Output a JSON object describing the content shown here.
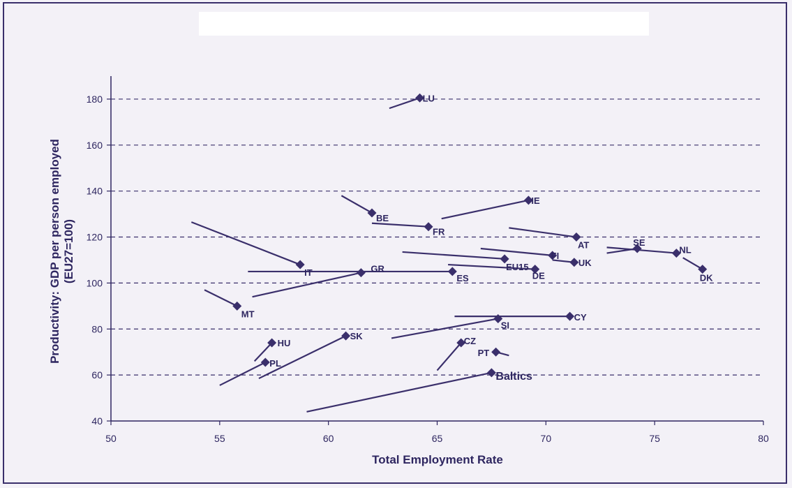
{
  "chart_data": {
    "type": "scatter",
    "xlabel": "Total Employment Rate",
    "ylabel": "Productivity: GDP per person employed (EU27=100)",
    "xlim": [
      50,
      80
    ],
    "ylim": [
      40,
      190
    ],
    "xticks": [
      "50",
      "55",
      "60",
      "65",
      "70",
      "75",
      "80"
    ],
    "yticks": [
      "40",
      "60",
      "80",
      "100",
      "120",
      "140",
      "160",
      "180"
    ],
    "grid": "horizontal dashed",
    "colors": {
      "marker": "#3a2f6b",
      "axis": "#2e2660",
      "grid": "#3a2f6b"
    },
    "points": [
      {
        "label": "LU",
        "x": 64.2,
        "y": 180.5,
        "trail": {
          "x": 62.8,
          "y": 176
        }
      },
      {
        "label": "BE",
        "x": 62.0,
        "y": 130.5,
        "trail": {
          "x": 60.6,
          "y": 138
        }
      },
      {
        "label": "FR",
        "x": 64.6,
        "y": 124.5,
        "trail": {
          "x": 62.0,
          "y": 126
        }
      },
      {
        "label": "IE",
        "x": 69.2,
        "y": 136.0,
        "trail": {
          "x": 65.2,
          "y": 128
        }
      },
      {
        "label": "AT",
        "x": 71.4,
        "y": 120.0,
        "trail": {
          "x": 68.3,
          "y": 124
        }
      },
      {
        "label": "SE",
        "x": 74.2,
        "y": 115.0,
        "trail": {
          "x": 72.8,
          "y": 113
        }
      },
      {
        "label": "NL",
        "x": 76.0,
        "y": 113.0,
        "trail": {
          "x": 72.8,
          "y": 115.5
        }
      },
      {
        "label": "DK",
        "x": 77.2,
        "y": 106.0,
        "trail": {
          "x": 76.3,
          "y": 111
        }
      },
      {
        "label": "FI",
        "x": 70.3,
        "y": 112.0,
        "trail": {
          "x": 67.0,
          "y": 115
        }
      },
      {
        "label": "UK",
        "x": 71.3,
        "y": 109.0,
        "trail": {
          "x": 70.3,
          "y": 110
        }
      },
      {
        "label": "EU15",
        "x": 68.1,
        "y": 110.5,
        "trail": {
          "x": 63.4,
          "y": 113.5
        }
      },
      {
        "label": "DE",
        "x": 69.5,
        "y": 106.0,
        "trail": {
          "x": 65.5,
          "y": 108
        }
      },
      {
        "label": "IT",
        "x": 58.7,
        "y": 108.0,
        "trail": {
          "x": 53.7,
          "y": 126.5
        }
      },
      {
        "label": "GR",
        "x": 61.5,
        "y": 104.5,
        "trail": {
          "x": 56.5,
          "y": 94
        }
      },
      {
        "label": "ES",
        "x": 65.7,
        "y": 105.0,
        "trail": {
          "x": 56.3,
          "y": 105
        }
      },
      {
        "label": "MT",
        "x": 55.8,
        "y": 90.0,
        "trail": {
          "x": 54.3,
          "y": 97
        }
      },
      {
        "label": "CY",
        "x": 71.1,
        "y": 85.5,
        "trail": {
          "x": 65.8,
          "y": 85.5
        }
      },
      {
        "label": "SI",
        "x": 67.8,
        "y": 84.5,
        "trail": {
          "x": 62.9,
          "y": 76
        }
      },
      {
        "label": "HU",
        "x": 57.4,
        "y": 74.0,
        "trail": {
          "x": 56.6,
          "y": 66
        }
      },
      {
        "label": "SK",
        "x": 60.8,
        "y": 77.0,
        "trail": {
          "x": 56.8,
          "y": 58.5
        }
      },
      {
        "label": "PL",
        "x": 57.1,
        "y": 65.5,
        "trail": {
          "x": 55.0,
          "y": 55.5
        }
      },
      {
        "label": "CZ",
        "x": 66.1,
        "y": 74.0,
        "trail": {
          "x": 65.0,
          "y": 62
        }
      },
      {
        "label": "PT",
        "x": 67.7,
        "y": 70.0,
        "trail": {
          "x": 68.3,
          "y": 68.5
        }
      },
      {
        "label": "Baltics",
        "x": 67.5,
        "y": 61.0,
        "trail": {
          "x": 59.0,
          "y": 44
        }
      }
    ]
  }
}
